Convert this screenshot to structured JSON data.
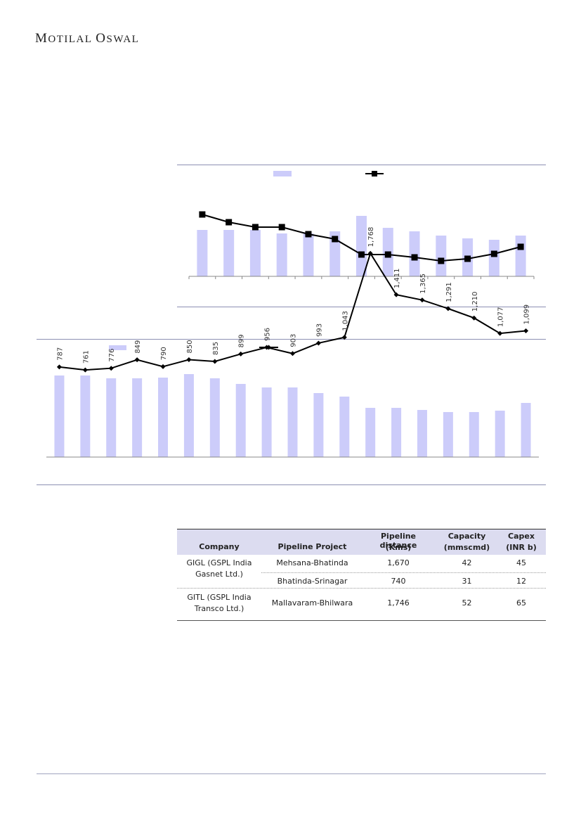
{
  "header": {
    "logo_first": "M",
    "logo_rest1": "OTILAL ",
    "logo_second": "O",
    "logo_rest2": "SWAL"
  },
  "colors": {
    "bar": "#ccccfa",
    "line": "#000000",
    "rule": "#8c8fb3",
    "table_header": "#dcdcf0"
  },
  "chart_data": [
    {
      "type": "bar",
      "categories": [
        "",
        "",
        "",
        "",
        "",
        "",
        "",
        "",
        "",
        "",
        "",
        "",
        ""
      ],
      "series": [
        {
          "values": [
            66,
            66,
            66,
            61,
            61,
            64,
            86,
            69,
            64,
            58,
            54,
            52,
            58
          ]
        },
        {
          "values": [
            88,
            77,
            70,
            70,
            60,
            53,
            31,
            31,
            27,
            22,
            25,
            32,
            42
          ]
        }
      ],
      "legend": "top",
      "grid": false
    },
    {
      "type": "bar",
      "categories": [
        "",
        "",
        "",
        "",
        "",
        "",
        "",
        "",
        "",
        "",
        "",
        "",
        "",
        "",
        "",
        "",
        "",
        "",
        ""
      ],
      "series": [
        {
          "values": [
            116,
            116,
            112,
            112,
            113,
            118,
            112,
            104,
            99,
            99,
            91,
            86,
            70,
            70,
            67,
            64,
            64,
            66,
            77
          ]
        },
        {
          "values": [
            787,
            761,
            776,
            849,
            790,
            850,
            835,
            899,
            956,
            903,
            993,
            1043,
            1768,
            1411,
            1365,
            1291,
            1210,
            1077,
            1099
          ]
        }
      ],
      "data_labels": [
        "787",
        "761",
        "776",
        "849",
        "790",
        "850",
        "835",
        "899",
        "956",
        "903",
        "993",
        "1,043",
        "1,768",
        "1,411",
        "1,365",
        "1,291",
        "1,210",
        "1,077",
        "1,099"
      ],
      "legend": "top",
      "grid": false
    }
  ],
  "table": {
    "headers": {
      "company": "Company",
      "project": "Pipeline Project",
      "distance_l1": "Pipeline distance",
      "distance_l2": "(Kms)",
      "capacity_l1": "Capacity",
      "capacity_l2": "(mmscmd)",
      "capex_l1": "Capex",
      "capex_l2": "(INR b)"
    },
    "groups": [
      {
        "company_l1": "GIGL (GSPL India",
        "company_l2": "Gasnet Ltd.)",
        "rows": [
          {
            "project": "Mehsana-Bhatinda",
            "distance": "1,670",
            "capacity": "42",
            "capex": "45"
          },
          {
            "project": "Bhatinda-Srinagar",
            "distance": "740",
            "capacity": "31",
            "capex": "12"
          }
        ]
      },
      {
        "company_l1": "GITL (GSPL India",
        "company_l2": "Transco Ltd.)",
        "rows": [
          {
            "project": "Mallavaram-Bhilwara",
            "distance": "1,746",
            "capacity": "52",
            "capex": "65"
          }
        ]
      }
    ]
  }
}
